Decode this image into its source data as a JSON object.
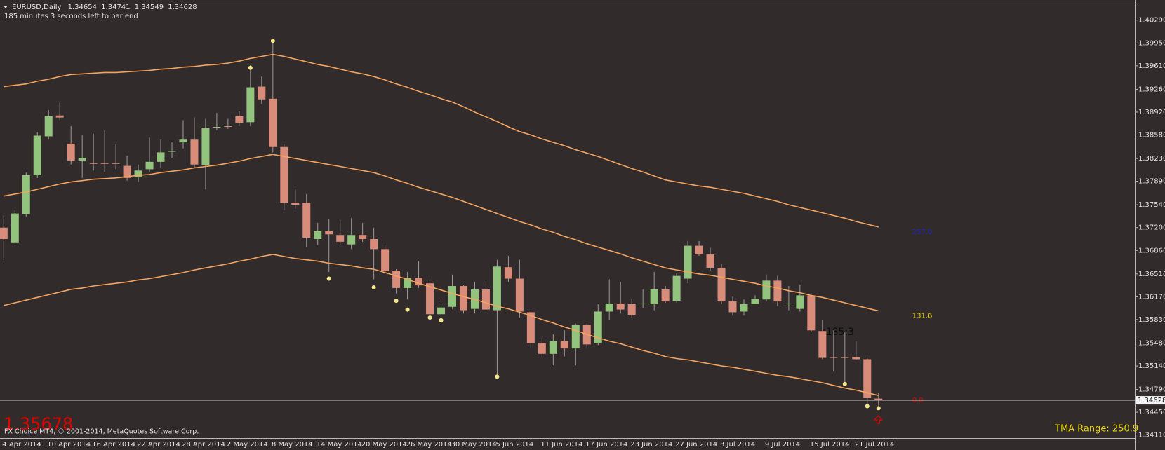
{
  "chart_data": {
    "type": "candlestick",
    "title": "EURUSD,Daily",
    "subtitle": "185 minutes 3 seconds left to bar end",
    "categories": [
      "4 Apr 2014",
      null,
      null,
      null,
      "10 Apr 2014",
      null,
      null,
      null,
      "16 Apr 2014",
      null,
      null,
      null,
      "22 Apr 2014",
      null,
      null,
      null,
      "28 Apr 2014",
      null,
      null,
      null,
      "2 May 2014",
      null,
      null,
      null,
      "8 May 2014",
      null,
      null,
      null,
      "14 May 2014",
      null,
      null,
      null,
      "20 May 2014",
      null,
      null,
      null,
      "26 May 2014",
      null,
      null,
      null,
      "30 May 2014",
      null,
      null,
      null,
      "5 Jun 2014",
      null,
      null,
      null,
      "11 Jun 2014",
      null,
      null,
      null,
      "17 Jun 2014",
      null,
      null,
      null,
      "23 Jun 2014",
      null,
      null,
      null,
      "27 Jun 2014",
      null,
      null,
      null,
      "3 Jul 2014",
      null,
      null,
      null,
      "9 Jul 2014",
      null,
      null,
      null,
      "15 Jul 2014",
      null,
      null,
      null,
      "21 Jul 2014",
      null,
      null
    ],
    "open": [
      1.372,
      1.3698,
      1.374,
      1.3798,
      1.3856,
      1.3887,
      1.3845,
      1.382,
      1.3816,
      1.3816,
      1.3816,
      1.3812,
      1.3795,
      1.3807,
      1.3818,
      1.3833,
      1.3847,
      1.3851,
      1.3813,
      1.3869,
      1.3871,
      1.3886,
      1.3877,
      1.393,
      1.3912,
      1.384,
      1.3757,
      1.3757,
      1.3703,
      1.3715,
      1.3709,
      1.3695,
      1.3709,
      1.3703,
      1.3688,
      1.3656,
      1.363,
      1.3645,
      1.3637,
      1.3591,
      1.3602,
      1.3633,
      1.3599,
      1.3628,
      1.3597,
      1.3661,
      1.3644,
      1.3594,
      1.3548,
      1.3532,
      1.3551,
      1.354,
      1.3575,
      1.3548,
      1.3595,
      1.3607,
      1.3606,
      1.3606,
      1.3606,
      1.3628,
      1.3611,
      1.3644,
      1.3693,
      1.368,
      1.366,
      1.361,
      1.3595,
      1.3606,
      1.3613,
      1.3641,
      1.3606,
      1.3599,
      1.3619,
      1.3566,
      1.3527,
      1.3527,
      1.3527,
      1.3524,
      1.34654
    ],
    "high": [
      1.3738,
      1.3746,
      1.3802,
      1.3862,
      1.3895,
      1.3906,
      1.3871,
      1.3858,
      1.386,
      1.3865,
      1.3844,
      1.3827,
      1.3814,
      1.3854,
      1.3851,
      1.3847,
      1.388,
      1.3884,
      1.3882,
      1.3891,
      1.3882,
      1.3893,
      1.3962,
      1.3945,
      1.3999,
      1.3844,
      1.3777,
      1.377,
      1.3727,
      1.3733,
      1.3731,
      1.3734,
      1.3727,
      1.372,
      1.3694,
      1.3658,
      1.3654,
      1.367,
      1.3644,
      1.3611,
      1.365,
      1.3634,
      1.3639,
      1.3641,
      1.3672,
      1.3678,
      1.3672,
      1.3595,
      1.3556,
      1.3561,
      1.3567,
      1.3577,
      1.3577,
      1.3606,
      1.3643,
      1.3639,
      1.3614,
      1.3628,
      1.3654,
      1.3633,
      1.3652,
      1.37,
      1.37,
      1.369,
      1.3666,
      1.3617,
      1.3613,
      1.3619,
      1.365,
      1.3648,
      1.3633,
      1.3635,
      1.3622,
      1.3583,
      1.3567,
      1.3564,
      1.355,
      1.3526,
      1.34741
    ],
    "low": [
      1.3672,
      1.3696,
      1.3736,
      1.3794,
      1.3851,
      1.388,
      1.3814,
      1.3794,
      1.3805,
      1.3803,
      1.3807,
      1.379,
      1.3788,
      1.3803,
      1.3809,
      1.3824,
      1.3838,
      1.3809,
      1.3777,
      1.3865,
      1.3867,
      1.3871,
      1.3871,
      1.3904,
      1.3832,
      1.3746,
      1.3748,
      1.3691,
      1.3694,
      1.3654,
      1.3694,
      1.3688,
      1.3699,
      1.3643,
      1.3652,
      1.3622,
      1.3613,
      1.363,
      1.3589,
      1.3589,
      1.3599,
      1.3592,
      1.3592,
      1.3595,
      1.3501,
      1.3639,
      1.3586,
      1.3544,
      1.3528,
      1.3515,
      1.3528,
      1.3515,
      1.3541,
      1.3545,
      1.3583,
      1.3592,
      1.3586,
      1.36,
      1.3597,
      1.3608,
      1.3608,
      1.3637,
      1.3678,
      1.3656,
      1.3606,
      1.3589,
      1.3589,
      1.3606,
      1.361,
      1.3603,
      1.3597,
      1.3595,
      1.3564,
      1.3524,
      1.3506,
      1.3489,
      1.3523,
      1.3456,
      1.34549
    ],
    "close": [
      1.3703,
      1.3741,
      1.3798,
      1.3857,
      1.3886,
      1.3884,
      1.382,
      1.3824,
      1.3815,
      1.3815,
      1.3815,
      1.3794,
      1.3805,
      1.3818,
      1.3832,
      1.3834,
      1.3851,
      1.3814,
      1.3868,
      1.387,
      1.387,
      1.3876,
      1.3929,
      1.3911,
      1.384,
      1.3757,
      1.3754,
      1.3705,
      1.3715,
      1.371,
      1.3699,
      1.3709,
      1.3703,
      1.3688,
      1.3655,
      1.363,
      1.3645,
      1.3634,
      1.3591,
      1.3601,
      1.3633,
      1.3597,
      1.3628,
      1.3598,
      1.3662,
      1.3644,
      1.3595,
      1.3548,
      1.3532,
      1.3551,
      1.354,
      1.3575,
      1.3546,
      1.3595,
      1.3607,
      1.3598,
      1.359,
      1.3607,
      1.3628,
      1.361,
      1.3648,
      1.3693,
      1.368,
      1.366,
      1.361,
      1.3594,
      1.3606,
      1.3614,
      1.3641,
      1.361,
      1.3607,
      1.3619,
      1.3567,
      1.3526,
      1.3526,
      1.3526,
      1.3524,
      1.3466,
      1.34628
    ],
    "up_color": "#93c47d",
    "down_color": "#d98c7a",
    "wick_color": "#a09a98",
    "bands": [
      {
        "color": "#f4a460",
        "label": "257.0",
        "label_color": "#2020d0",
        "values": [
          1.393,
          1.3932,
          1.3934,
          1.3938,
          1.3941,
          1.3945,
          1.3948,
          1.3949,
          1.395,
          1.3951,
          1.3951,
          1.3952,
          1.3953,
          1.3954,
          1.3956,
          1.3957,
          1.3959,
          1.396,
          1.3962,
          1.3963,
          1.3965,
          1.3968,
          1.3972,
          1.3975,
          1.3978,
          1.3975,
          1.3971,
          1.3967,
          1.3963,
          1.396,
          1.3956,
          1.3952,
          1.3949,
          1.3945,
          1.394,
          1.3934,
          1.3929,
          1.3923,
          1.3918,
          1.3912,
          1.3907,
          1.39,
          1.3892,
          1.3885,
          1.3878,
          1.387,
          1.3863,
          1.3858,
          1.3852,
          1.3847,
          1.3842,
          1.3836,
          1.3831,
          1.3826,
          1.382,
          1.3814,
          1.3808,
          1.3803,
          1.3797,
          1.3791,
          1.3788,
          1.3785,
          1.3782,
          1.378,
          1.3777,
          1.3774,
          1.3771,
          1.3767,
          1.3763,
          1.3759,
          1.3754,
          1.375,
          1.3746,
          1.3742,
          1.3738,
          1.3734,
          1.3729,
          1.3725,
          1.3721
        ]
      },
      {
        "color": "#f4a460",
        "label": "131.6",
        "label_color": "#e6d400",
        "values": [
          1.3767,
          1.377,
          1.3773,
          1.3777,
          1.3781,
          1.3785,
          1.3788,
          1.379,
          1.3792,
          1.3793,
          1.3794,
          1.3796,
          1.3798,
          1.3799,
          1.3802,
          1.3804,
          1.3806,
          1.3809,
          1.3811,
          1.3813,
          1.3816,
          1.3819,
          1.3823,
          1.3826,
          1.3829,
          1.3826,
          1.3823,
          1.382,
          1.3817,
          1.3814,
          1.3811,
          1.3808,
          1.3805,
          1.3802,
          1.3797,
          1.3791,
          1.3786,
          1.378,
          1.3775,
          1.377,
          1.3765,
          1.3759,
          1.3753,
          1.3747,
          1.3741,
          1.3735,
          1.3729,
          1.3724,
          1.3718,
          1.3713,
          1.3707,
          1.3702,
          1.3696,
          1.3691,
          1.3686,
          1.3681,
          1.3675,
          1.367,
          1.3665,
          1.366,
          1.3657,
          1.3654,
          1.3651,
          1.3649,
          1.3646,
          1.3643,
          1.364,
          1.3637,
          1.3633,
          1.363,
          1.3626,
          1.3623,
          1.3619,
          1.3616,
          1.3612,
          1.3608,
          1.3604,
          1.36,
          1.3596
        ]
      },
      {
        "color": "#f4a460",
        "label": "0.0",
        "label_color": "#e00000",
        "values": [
          1.3604,
          1.3608,
          1.3612,
          1.3616,
          1.362,
          1.3624,
          1.3628,
          1.363,
          1.3633,
          1.3635,
          1.3637,
          1.3639,
          1.3642,
          1.3644,
          1.3647,
          1.365,
          1.3653,
          1.3657,
          1.366,
          1.3663,
          1.3666,
          1.367,
          1.3673,
          1.3677,
          1.368,
          1.3677,
          1.3674,
          1.3672,
          1.367,
          1.3667,
          1.3665,
          1.3663,
          1.366,
          1.3658,
          1.3653,
          1.3648,
          1.3643,
          1.3637,
          1.3632,
          1.3627,
          1.3622,
          1.3617,
          1.3613,
          1.3608,
          1.3603,
          1.3599,
          1.3594,
          1.3589,
          1.3583,
          1.3578,
          1.3572,
          1.3567,
          1.3561,
          1.3556,
          1.3551,
          1.3547,
          1.3542,
          1.3537,
          1.3533,
          1.3528,
          1.3525,
          1.3523,
          1.352,
          1.3517,
          1.3514,
          1.3512,
          1.3509,
          1.3506,
          1.3503,
          1.35,
          1.3498,
          1.3495,
          1.3492,
          1.3489,
          1.3485,
          1.3481,
          1.3478,
          1.3474,
          1.347
        ]
      }
    ],
    "markers": {
      "color": "#f5e68c",
      "values": [
        null,
        null,
        null,
        null,
        null,
        null,
        null,
        null,
        null,
        null,
        null,
        null,
        null,
        null,
        null,
        null,
        null,
        null,
        null,
        null,
        null,
        null,
        1.3958,
        null,
        1.3998,
        null,
        null,
        null,
        null,
        1.3644,
        null,
        null,
        null,
        1.3631,
        null,
        1.3611,
        1.3598,
        null,
        1.3586,
        1.3582,
        null,
        null,
        null,
        null,
        1.3498,
        null,
        null,
        null,
        null,
        null,
        null,
        null,
        null,
        null,
        null,
        null,
        null,
        null,
        null,
        null,
        null,
        null,
        null,
        null,
        null,
        null,
        null,
        null,
        null,
        null,
        null,
        null,
        null,
        null,
        null,
        1.3487,
        null,
        1.3454,
        1.3451
      ]
    },
    "ylim": [
      1.34065,
      1.4059
    ],
    "yticks": [
      {
        "value": 1.4029,
        "label": "1.40290"
      },
      {
        "value": 1.3995,
        "label": "1.39950"
      },
      {
        "value": 1.3961,
        "label": "1.39610"
      },
      {
        "value": 1.3926,
        "label": "1.39260"
      },
      {
        "value": 1.3892,
        "label": "1.38920"
      },
      {
        "value": 1.3858,
        "label": "1.38580"
      },
      {
        "value": 1.3823,
        "label": "1.38230"
      },
      {
        "value": 1.3789,
        "label": "1.37890"
      },
      {
        "value": 1.3754,
        "label": "1.37540"
      },
      {
        "value": 1.372,
        "label": "1.37200"
      },
      {
        "value": 1.3686,
        "label": "1.36860"
      },
      {
        "value": 1.3651,
        "label": "1.36510"
      },
      {
        "value": 1.3617,
        "label": "1.36170"
      },
      {
        "value": 1.3583,
        "label": "1.35830"
      },
      {
        "value": 1.3548,
        "label": "1.35480"
      },
      {
        "value": 1.3514,
        "label": "1.35140"
      },
      {
        "value": 1.3479,
        "label": "1.34790"
      },
      {
        "value": 1.3445,
        "label": "1.34450"
      },
      {
        "value": 1.3411,
        "label": "1.34110"
      }
    ],
    "grid": false,
    "countdown_label": "<185:3",
    "price_watermark": "1.35678",
    "tma_range": "TMA Range: 250.9",
    "copyright": "FX Choice MT4, © 2001-2014, MetaQuotes Software Corp."
  }
}
